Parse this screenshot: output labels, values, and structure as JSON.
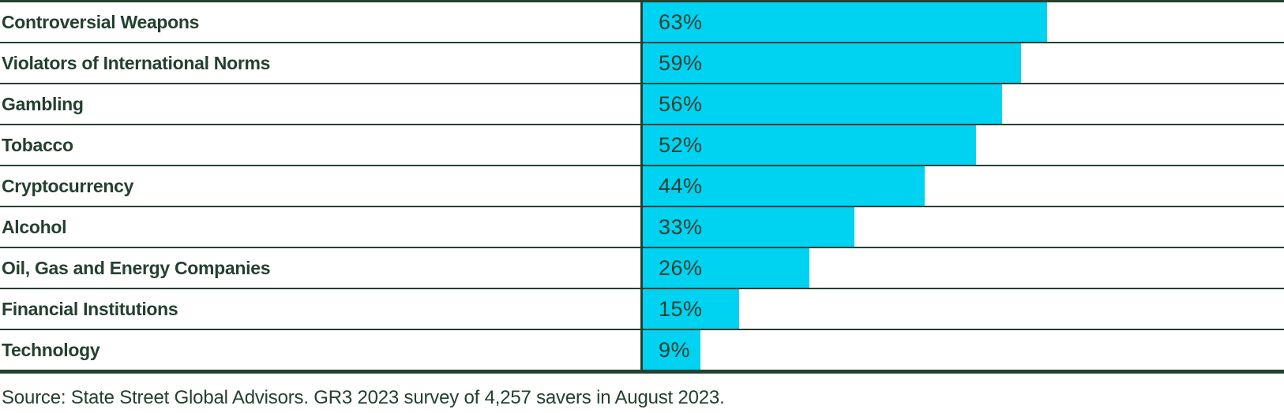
{
  "chart_data": {
    "type": "bar",
    "orientation": "horizontal",
    "categories": [
      "Controversial Weapons",
      "Violators of International Norms",
      "Gambling",
      "Tobacco",
      "Cryptocurrency",
      "Alcohol",
      "Oil, Gas and Energy Companies",
      "Financial Institutions",
      "Technology"
    ],
    "values": [
      63,
      59,
      56,
      52,
      44,
      33,
      26,
      15,
      9
    ],
    "value_suffix": "%",
    "xlim": [
      0,
      100
    ],
    "value_labels_position": "inside-start",
    "grid": "row-dividers",
    "legend": "none",
    "bar_color": "#00d2f2",
    "ink_color": "#24402f"
  },
  "source_note": "Source: State Street Global Advisors. GR3 2023 survey of 4,257 savers in August 2023."
}
